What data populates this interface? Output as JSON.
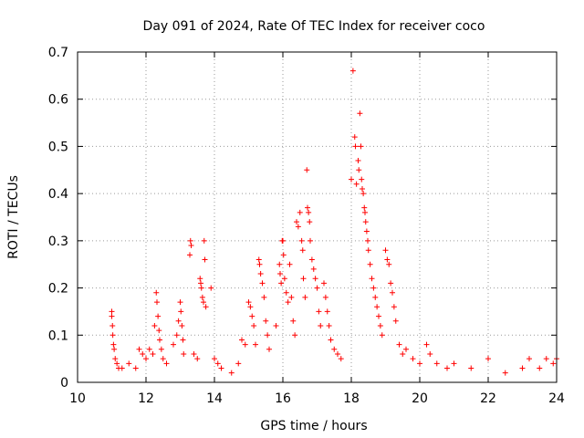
{
  "chart_data": {
    "type": "scatter",
    "title": "Day 091 of 2024, Rate Of TEC Index for receiver coco",
    "xlabel": "GPS time / hours",
    "ylabel": "ROTI / TECUs",
    "xlim": [
      10,
      24
    ],
    "ylim": [
      0,
      0.7
    ],
    "x_ticks": [
      "10",
      "12",
      "14",
      "16",
      "18",
      "20",
      "22",
      "24"
    ],
    "y_ticks": [
      "0",
      "0.1",
      "0.2",
      "0.3",
      "0.4",
      "0.5",
      "0.6",
      "0.7"
    ],
    "x_tick_values": [
      10,
      12,
      14,
      16,
      18,
      20,
      22,
      24
    ],
    "y_tick_values": [
      0,
      0.1,
      0.2,
      0.3,
      0.4,
      0.5,
      0.6,
      0.7
    ],
    "grid": true,
    "marker": "+",
    "color": "#ff0000",
    "series": [
      {
        "points": [
          [
            11.0,
            0.15
          ],
          [
            11.0,
            0.14
          ],
          [
            11.02,
            0.12
          ],
          [
            11.03,
            0.1
          ],
          [
            11.05,
            0.08
          ],
          [
            11.07,
            0.07
          ],
          [
            11.1,
            0.05
          ],
          [
            11.15,
            0.04
          ],
          [
            11.2,
            0.03
          ],
          [
            11.3,
            0.03
          ],
          [
            11.5,
            0.04
          ],
          [
            11.7,
            0.03
          ],
          [
            11.8,
            0.07
          ],
          [
            11.9,
            0.06
          ],
          [
            12.0,
            0.05
          ],
          [
            12.1,
            0.07
          ],
          [
            12.2,
            0.06
          ],
          [
            12.25,
            0.12
          ],
          [
            12.3,
            0.19
          ],
          [
            12.32,
            0.17
          ],
          [
            12.35,
            0.14
          ],
          [
            12.38,
            0.11
          ],
          [
            12.4,
            0.09
          ],
          [
            12.45,
            0.07
          ],
          [
            12.5,
            0.05
          ],
          [
            12.6,
            0.04
          ],
          [
            12.8,
            0.08
          ],
          [
            12.9,
            0.1
          ],
          [
            12.95,
            0.13
          ],
          [
            13.0,
            0.17
          ],
          [
            13.02,
            0.15
          ],
          [
            13.05,
            0.12
          ],
          [
            13.08,
            0.09
          ],
          [
            13.1,
            0.06
          ],
          [
            13.3,
            0.3
          ],
          [
            13.32,
            0.29
          ],
          [
            13.28,
            0.27
          ],
          [
            13.4,
            0.06
          ],
          [
            13.5,
            0.05
          ],
          [
            13.58,
            0.22
          ],
          [
            13.6,
            0.21
          ],
          [
            13.62,
            0.2
          ],
          [
            13.65,
            0.18
          ],
          [
            13.68,
            0.17
          ],
          [
            13.7,
            0.3
          ],
          [
            13.72,
            0.26
          ],
          [
            13.75,
            0.16
          ],
          [
            13.9,
            0.2
          ],
          [
            14.0,
            0.05
          ],
          [
            14.1,
            0.04
          ],
          [
            14.2,
            0.03
          ],
          [
            14.5,
            0.02
          ],
          [
            14.7,
            0.04
          ],
          [
            14.8,
            0.09
          ],
          [
            14.9,
            0.08
          ],
          [
            15.0,
            0.17
          ],
          [
            15.05,
            0.16
          ],
          [
            15.1,
            0.14
          ],
          [
            15.15,
            0.12
          ],
          [
            15.2,
            0.08
          ],
          [
            15.3,
            0.26
          ],
          [
            15.32,
            0.25
          ],
          [
            15.35,
            0.23
          ],
          [
            15.4,
            0.21
          ],
          [
            15.45,
            0.18
          ],
          [
            15.5,
            0.13
          ],
          [
            15.55,
            0.1
          ],
          [
            15.6,
            0.07
          ],
          [
            15.8,
            0.12
          ],
          [
            15.9,
            0.25
          ],
          [
            15.92,
            0.23
          ],
          [
            15.95,
            0.21
          ],
          [
            15.98,
            0.3
          ],
          [
            16.0,
            0.3
          ],
          [
            16.02,
            0.27
          ],
          [
            16.05,
            0.22
          ],
          [
            16.1,
            0.19
          ],
          [
            16.15,
            0.17
          ],
          [
            16.2,
            0.25
          ],
          [
            16.25,
            0.18
          ],
          [
            16.3,
            0.13
          ],
          [
            16.35,
            0.1
          ],
          [
            16.4,
            0.34
          ],
          [
            16.45,
            0.33
          ],
          [
            16.5,
            0.36
          ],
          [
            16.55,
            0.3
          ],
          [
            16.58,
            0.28
          ],
          [
            16.6,
            0.22
          ],
          [
            16.65,
            0.18
          ],
          [
            16.7,
            0.45
          ],
          [
            16.72,
            0.37
          ],
          [
            16.75,
            0.36
          ],
          [
            16.78,
            0.34
          ],
          [
            16.8,
            0.3
          ],
          [
            16.85,
            0.26
          ],
          [
            16.9,
            0.24
          ],
          [
            16.95,
            0.22
          ],
          [
            17.0,
            0.2
          ],
          [
            17.05,
            0.15
          ],
          [
            17.1,
            0.12
          ],
          [
            17.2,
            0.21
          ],
          [
            17.25,
            0.18
          ],
          [
            17.3,
            0.15
          ],
          [
            17.35,
            0.12
          ],
          [
            17.4,
            0.09
          ],
          [
            17.5,
            0.07
          ],
          [
            17.6,
            0.06
          ],
          [
            17.7,
            0.05
          ],
          [
            18.0,
            0.43
          ],
          [
            18.05,
            0.66
          ],
          [
            18.1,
            0.52
          ],
          [
            18.12,
            0.5
          ],
          [
            18.15,
            0.42
          ],
          [
            18.2,
            0.47
          ],
          [
            18.22,
            0.45
          ],
          [
            18.25,
            0.57
          ],
          [
            18.28,
            0.5
          ],
          [
            18.3,
            0.43
          ],
          [
            18.32,
            0.41
          ],
          [
            18.35,
            0.4
          ],
          [
            18.38,
            0.37
          ],
          [
            18.4,
            0.36
          ],
          [
            18.42,
            0.34
          ],
          [
            18.45,
            0.32
          ],
          [
            18.48,
            0.3
          ],
          [
            18.5,
            0.28
          ],
          [
            18.55,
            0.25
          ],
          [
            18.6,
            0.22
          ],
          [
            18.65,
            0.2
          ],
          [
            18.7,
            0.18
          ],
          [
            18.75,
            0.16
          ],
          [
            18.8,
            0.14
          ],
          [
            18.85,
            0.12
          ],
          [
            18.9,
            0.1
          ],
          [
            19.0,
            0.28
          ],
          [
            19.05,
            0.26
          ],
          [
            19.1,
            0.25
          ],
          [
            19.15,
            0.21
          ],
          [
            19.2,
            0.19
          ],
          [
            19.25,
            0.16
          ],
          [
            19.3,
            0.13
          ],
          [
            19.4,
            0.08
          ],
          [
            19.5,
            0.06
          ],
          [
            19.6,
            0.07
          ],
          [
            19.8,
            0.05
          ],
          [
            20.0,
            0.04
          ],
          [
            20.2,
            0.08
          ],
          [
            20.3,
            0.06
          ],
          [
            20.5,
            0.04
          ],
          [
            20.8,
            0.03
          ],
          [
            21.0,
            0.04
          ],
          [
            21.5,
            0.03
          ],
          [
            22.0,
            0.05
          ],
          [
            22.5,
            0.02
          ],
          [
            23.0,
            0.03
          ],
          [
            23.2,
            0.05
          ],
          [
            23.5,
            0.03
          ],
          [
            23.7,
            0.05
          ],
          [
            23.9,
            0.04
          ],
          [
            24.0,
            0.05
          ]
        ]
      }
    ]
  }
}
